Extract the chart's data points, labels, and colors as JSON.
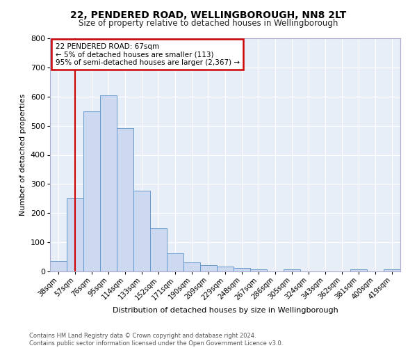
{
  "title1": "22, PENDERED ROAD, WELLINGBOROUGH, NN8 2LT",
  "title2": "Size of property relative to detached houses in Wellingborough",
  "xlabel": "Distribution of detached houses by size in Wellingborough",
  "ylabel": "Number of detached properties",
  "categories": [
    "38sqm",
    "57sqm",
    "76sqm",
    "95sqm",
    "114sqm",
    "133sqm",
    "152sqm",
    "171sqm",
    "190sqm",
    "209sqm",
    "229sqm",
    "248sqm",
    "267sqm",
    "286sqm",
    "305sqm",
    "324sqm",
    "343sqm",
    "362sqm",
    "381sqm",
    "400sqm",
    "419sqm"
  ],
  "values": [
    35,
    250,
    550,
    605,
    493,
    278,
    148,
    62,
    32,
    22,
    17,
    13,
    8,
    0,
    7,
    0,
    0,
    0,
    8,
    0,
    8
  ],
  "bar_color": "#ccd9f0",
  "bar_edge_color": "#6699cc",
  "annotation_box_text": "22 PENDERED ROAD: 67sqm\n← 5% of detached houses are smaller (113)\n95% of semi-detached houses are larger (2,367) →",
  "annotation_box_color": "#ffffff",
  "annotation_box_edge_color": "#cc0000",
  "vline_x": 1,
  "vline_color": "#cc0000",
  "ylim": [
    0,
    800
  ],
  "yticks": [
    0,
    100,
    200,
    300,
    400,
    500,
    600,
    700,
    800
  ],
  "background_color": "#e8eef8",
  "grid_color": "#ffffff",
  "fig_background": "#ffffff",
  "footer": "Contains HM Land Registry data © Crown copyright and database right 2024.\nContains public sector information licensed under the Open Government Licence v3.0."
}
